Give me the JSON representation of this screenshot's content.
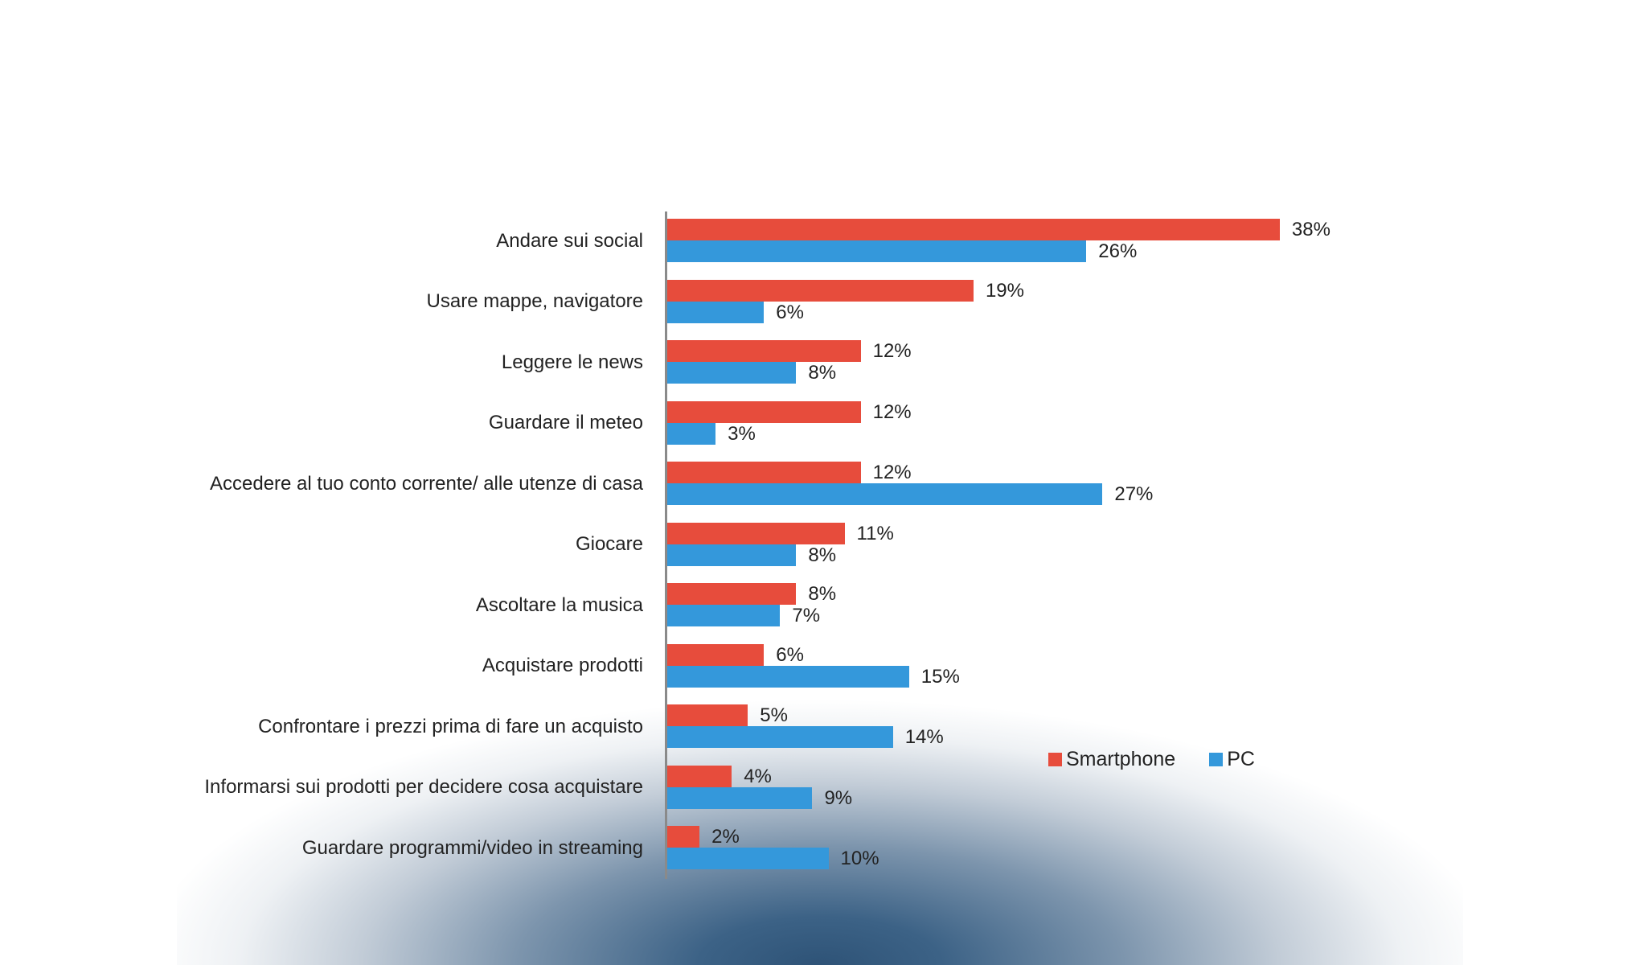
{
  "chart_data": {
    "type": "bar",
    "orientation": "horizontal",
    "title": "",
    "xlabel": "",
    "ylabel": "",
    "xlim": [
      0,
      38
    ],
    "grid": false,
    "legend_position": "right-center",
    "categories": [
      "Andare sui social",
      "Usare mappe, navigatore",
      "Leggere le news",
      "Guardare il meteo",
      "Accedere al tuo conto corrente/ alle utenze di casa",
      "Giocare",
      "Ascoltare la musica",
      "Acquistare prodotti",
      "Confrontare i prezzi prima di fare un acquisto",
      "Informarsi sui prodotti per decidere cosa acquistare",
      "Guardare programmi/video in streaming"
    ],
    "series": [
      {
        "name": "Smartphone",
        "color": "#e74c3c",
        "values": [
          38,
          19,
          12,
          12,
          12,
          11,
          8,
          6,
          5,
          4,
          2
        ],
        "labels": [
          "38%",
          "19%",
          "12%",
          "12%",
          "12%",
          "11%",
          "8%",
          "6%",
          "5%",
          "4%",
          "2%"
        ]
      },
      {
        "name": "PC",
        "color": "#3498db",
        "values": [
          26,
          6,
          8,
          3,
          27,
          8,
          7,
          15,
          14,
          9,
          10
        ],
        "labels": [
          "26%",
          "6%",
          "8%",
          "3%",
          "27%",
          "8%",
          "7%",
          "15%",
          "14%",
          "9%",
          "10%"
        ]
      }
    ],
    "value_format": "percent"
  },
  "legend": {
    "items": [
      {
        "label": "Smartphone",
        "color": "#e74c3c"
      },
      {
        "label": "PC",
        "color": "#3498db"
      }
    ]
  },
  "colors": {
    "smartphone": "#e74c3c",
    "pc": "#3498db",
    "axis": "#8a8a8a",
    "text": "#222222",
    "background_glow": "#2e5377"
  }
}
